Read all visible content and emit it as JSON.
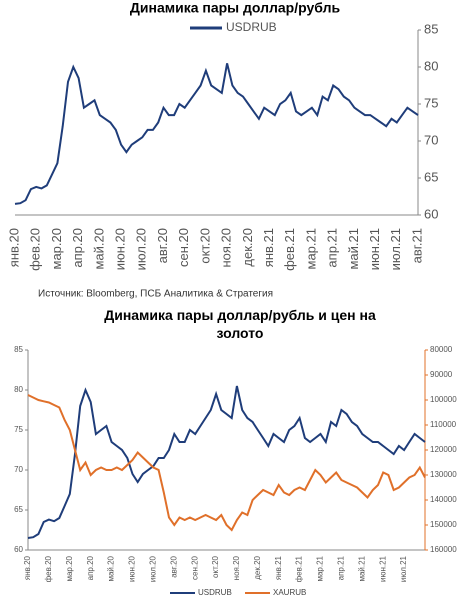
{
  "chart_data": [
    {
      "type": "line",
      "title": "Динамика пары доллар/рубль",
      "source": "Источник: Bloomberg, ПСБ Аналитика & Стратегия",
      "yaxis_side": "right",
      "legend": "top",
      "categories": [
        "янв.20",
        null,
        null,
        null,
        "фев.20",
        null,
        null,
        null,
        "мар.20",
        null,
        null,
        null,
        "апр.20",
        null,
        null,
        null,
        "май.20",
        null,
        null,
        null,
        "июн.20",
        null,
        null,
        null,
        "июл.20",
        null,
        null,
        null,
        "авг.20",
        null,
        null,
        null,
        "сен.20",
        null,
        null,
        null,
        "окт.20",
        null,
        null,
        null,
        "ноя.20",
        null,
        null,
        null,
        "дек.20",
        null,
        null,
        null,
        "янв.21",
        null,
        null,
        null,
        "фев.21",
        null,
        null,
        null,
        "мар.21",
        null,
        null,
        null,
        "апр.21",
        null,
        null,
        null,
        "май.21",
        null,
        null,
        null,
        "июн.21",
        null,
        null,
        null,
        "июл.21",
        null,
        null,
        null,
        "авг.21"
      ],
      "series": [
        {
          "name": "USDRUB",
          "color": "#1f3d7a",
          "values": [
            61.5,
            61.6,
            62.0,
            63.5,
            63.8,
            63.6,
            64.0,
            65.5,
            67,
            72,
            78,
            80,
            78.5,
            74.5,
            75,
            75.5,
            73.5,
            73,
            72.5,
            71.5,
            69.5,
            68.5,
            69.5,
            70,
            70.5,
            71.5,
            71.5,
            72.5,
            74.5,
            73.5,
            73.5,
            75,
            74.5,
            75.5,
            76.5,
            77.5,
            79.5,
            77.5,
            77,
            76.5,
            80.5,
            77.5,
            76.5,
            76,
            75,
            74,
            73,
            74.5,
            74,
            73.5,
            75,
            75.5,
            76.5,
            74,
            73.5,
            74,
            74.5,
            73.5,
            76,
            75.5,
            77.5,
            77,
            76,
            75.5,
            74.5,
            74,
            73.5,
            73.5,
            73,
            72.5,
            72,
            73,
            72.5,
            73.5,
            74.5,
            74,
            73.5
          ]
        }
      ],
      "ylim": [
        60,
        85
      ],
      "yticks": [
        60,
        65,
        70,
        75,
        80,
        85
      ]
    },
    {
      "type": "line",
      "title": "Динамика пары доллар/рубль и цен на золото",
      "legend": "bottom",
      "categories": [
        "янв.20",
        null,
        null,
        null,
        "фев.20",
        null,
        null,
        null,
        "мар.20",
        null,
        null,
        null,
        "апр.20",
        null,
        null,
        null,
        "май.20",
        null,
        null,
        null,
        "июн.20",
        null,
        null,
        null,
        "июл.20",
        null,
        null,
        null,
        "авг.20",
        null,
        null,
        null,
        "сен.20",
        null,
        null,
        null,
        "окт.20",
        null,
        null,
        null,
        "ноя.20",
        null,
        null,
        null,
        "дек.20",
        null,
        null,
        null,
        "янв.21",
        null,
        null,
        null,
        "фев.21",
        null,
        null,
        null,
        "мар.21",
        null,
        null,
        null,
        "апр.21",
        null,
        null,
        null,
        "май.21",
        null,
        null,
        null,
        "июн.21",
        null,
        null,
        null,
        "июл.21",
        null,
        null,
        null,
        null
      ],
      "series": [
        {
          "name": "USDRUB",
          "color": "#1f3d7a",
          "values": [
            61.5,
            61.6,
            62.0,
            63.5,
            63.8,
            63.6,
            64.0,
            65.5,
            67,
            72,
            78,
            80,
            78.5,
            74.5,
            75,
            75.5,
            73.5,
            73,
            72.5,
            71.5,
            69.5,
            68.5,
            69.5,
            70,
            70.5,
            71.5,
            71.5,
            72.5,
            74.5,
            73.5,
            73.5,
            75,
            74.5,
            75.5,
            76.5,
            77.5,
            79.5,
            77.5,
            77,
            76.5,
            80.5,
            77.5,
            76.5,
            76,
            75,
            74,
            73,
            74.5,
            74,
            73.5,
            75,
            75.5,
            76.5,
            74,
            73.5,
            74,
            74.5,
            73.5,
            76,
            75.5,
            77.5,
            77,
            76,
            75.5,
            74.5,
            74,
            73.5,
            73.5,
            73,
            72.5,
            72,
            73,
            72.5,
            73.5,
            74.5,
            74,
            73.5
          ]
        },
        {
          "name": "XAURUB",
          "color": "#e0702a",
          "axis": "y2",
          "values": [
            98000,
            99000,
            100000,
            100500,
            101000,
            102000,
            103000,
            108000,
            112000,
            120000,
            128000,
            125000,
            130000,
            128000,
            127000,
            128000,
            128000,
            127000,
            128000,
            126000,
            124000,
            121000,
            123000,
            125000,
            127000,
            128000,
            137000,
            147000,
            150000,
            147000,
            148000,
            147000,
            148000,
            147000,
            146000,
            147000,
            148000,
            146000,
            150000,
            152000,
            148000,
            145000,
            146000,
            140000,
            138000,
            136000,
            137000,
            138000,
            134000,
            137000,
            138000,
            136000,
            135000,
            136000,
            132000,
            128000,
            130000,
            133000,
            131000,
            129000,
            132000,
            133000,
            134000,
            135000,
            137000,
            139000,
            136000,
            134000,
            129000,
            130000,
            136000,
            135000,
            133000,
            131000,
            130000,
            127000,
            131000
          ]
        }
      ],
      "ylim": [
        60,
        85
      ],
      "yticks": [
        60,
        65,
        70,
        75,
        80,
        85
      ],
      "y2lim": [
        160000,
        80000
      ],
      "y2ticks": [
        80000,
        90000,
        100000,
        110000,
        120000,
        130000,
        140000,
        150000,
        160000
      ]
    }
  ]
}
